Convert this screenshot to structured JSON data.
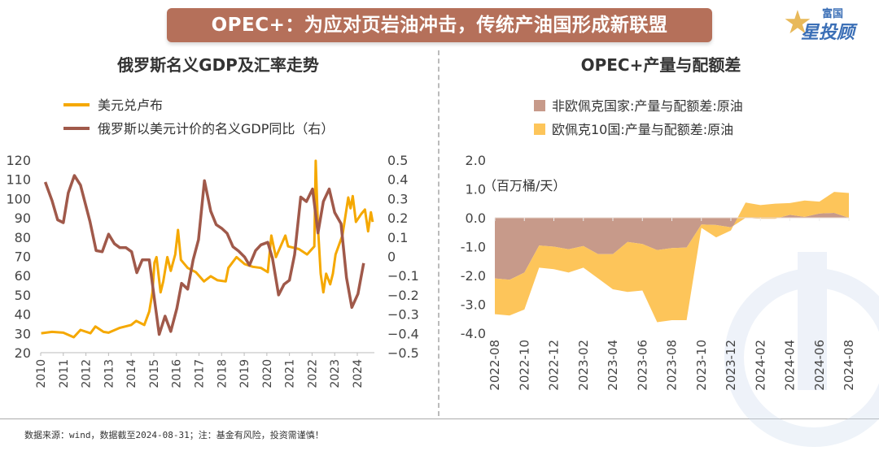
{
  "header": {
    "title": "OPEC+：为应对页岩油冲击，传统产油国形成新联盟",
    "logo_text": "富国星投顾"
  },
  "footer": {
    "source": "数据来源：wind，数据截至2024-08-31；注：基金有风险，投资需谨慎！"
  },
  "colors": {
    "banner": "#b5705a",
    "gold": "#f5a800",
    "brown": "#a0594a",
    "mauve": "#c79a8a",
    "yellow_area": "#fdc55a"
  },
  "chart_data": [
    {
      "type": "line",
      "title": "俄罗斯名义GDP及汇率走势",
      "legend_position": "top-left",
      "grid": false,
      "x_ticks": [
        "2010",
        "2011",
        "2012",
        "2013",
        "2014",
        "2015",
        "2016",
        "2017",
        "2018",
        "2019",
        "2020",
        "2021",
        "2022",
        "2023",
        "2024"
      ],
      "y_left": {
        "range": [
          20,
          120
        ],
        "ticks": [
          "20",
          "30",
          "40",
          "50",
          "60",
          "70",
          "80",
          "90",
          "100",
          "110",
          "120"
        ]
      },
      "y_right": {
        "range": [
          -0.5,
          0.5
        ],
        "ticks": [
          "−0.5",
          "−0.4",
          "−0.3",
          "−0.2",
          "−0.1",
          "0",
          "0.1",
          "0.2",
          "0.3",
          "0.4",
          "0.5"
        ]
      },
      "series": [
        {
          "name": "美元兑卢布",
          "axis": "left",
          "color": "#f5a800",
          "x": [
            2010.02,
            2010.5,
            2011.0,
            2011.46,
            2011.76,
            2012.2,
            2012.42,
            2012.78,
            2013.0,
            2013.5,
            2014.0,
            2014.22,
            2014.58,
            2014.8,
            2014.94,
            2015.03,
            2015.12,
            2015.3,
            2015.42,
            2015.6,
            2015.75,
            2015.95,
            2016.07,
            2016.2,
            2016.5,
            2016.86,
            2017.22,
            2017.52,
            2017.82,
            2018.18,
            2018.3,
            2018.66,
            2019.02,
            2019.38,
            2019.74,
            2020.04,
            2020.2,
            2020.4,
            2020.82,
            2020.94,
            2021.42,
            2021.78,
            2022.1,
            2022.16,
            2022.26,
            2022.38,
            2022.5,
            2022.62,
            2022.8,
            2022.92,
            2023.04,
            2023.34,
            2023.6,
            2023.7,
            2023.8,
            2023.94,
            2024.18,
            2024.34,
            2024.48,
            2024.6,
            2024.68
          ],
          "y": [
            30.1,
            30.8,
            30.4,
            28,
            31.8,
            30.1,
            33.6,
            30.8,
            30.4,
            32.9,
            34.4,
            36.5,
            34.4,
            41.4,
            51.3,
            66.8,
            69.6,
            51.3,
            57,
            69.6,
            62.5,
            71,
            83.7,
            68.2,
            64,
            61.8,
            57,
            59.7,
            57.6,
            57,
            64,
            69.6,
            66,
            64.6,
            64,
            61.8,
            80.8,
            69.6,
            80.8,
            75.2,
            73.8,
            71,
            75.2,
            119.6,
            85,
            61,
            51.3,
            61,
            55.5,
            61,
            71,
            80.8,
            100.6,
            95,
            101.3,
            87.9,
            92.1,
            94.3,
            83,
            92.9,
            87.9
          ]
        },
        {
          "name": "俄罗斯以美元计价的名义GDP同比（右）",
          "axis": "right",
          "color": "#a0594a",
          "x": [
            2010.2,
            2010.5,
            2010.75,
            2011.0,
            2011.22,
            2011.49,
            2011.76,
            2012.18,
            2012.45,
            2012.72,
            2013.0,
            2013.26,
            2013.5,
            2013.77,
            2014.02,
            2014.25,
            2014.49,
            2014.8,
            2015.02,
            2015.24,
            2015.5,
            2015.75,
            2016.02,
            2016.23,
            2016.5,
            2016.74,
            2016.98,
            2017.24,
            2017.52,
            2017.76,
            2018.0,
            2018.24,
            2018.5,
            2018.75,
            2019.02,
            2019.23,
            2019.5,
            2019.74,
            2020.04,
            2020.25,
            2020.52,
            2020.76,
            2021.0,
            2021.23,
            2021.5,
            2021.75,
            2022.02,
            2022.26,
            2022.5,
            2022.76,
            2023.0,
            2023.28,
            2023.52,
            2023.76,
            2024.03,
            2024.28
          ],
          "y": [
            0.386,
            0.29,
            0.19,
            0.175,
            0.33,
            0.42,
            0.37,
            0.18,
            0.03,
            0.024,
            0.115,
            0.066,
            0.045,
            0.045,
            0.024,
            -0.085,
            -0.018,
            -0.018,
            -0.215,
            -0.405,
            -0.31,
            -0.39,
            -0.27,
            -0.14,
            -0.17,
            -0.018,
            0.087,
            0.393,
            0.235,
            0.165,
            0.146,
            0.12,
            0.05,
            0.028,
            -0.004,
            -0.046,
            0.03,
            0.06,
            0.073,
            -0.01,
            -0.2,
            -0.145,
            -0.124,
            0.01,
            0.308,
            0.285,
            0.35,
            0.122,
            0.285,
            0.35,
            0.228,
            0.17,
            -0.11,
            -0.265,
            -0.195,
            -0.035
          ]
        }
      ]
    },
    {
      "type": "area",
      "stacked": true,
      "title": "OPEC+产量与配额差",
      "unit_label": "（百万桶/天）",
      "legend_position": "top",
      "grid": false,
      "y_range": [
        -4.0,
        2.0
      ],
      "y_ticks": [
        "-4.0",
        "-3.0",
        "-2.0",
        "-1.0",
        "0.0",
        "1.0",
        "2.0"
      ],
      "x_ticks": [
        "2022-08",
        "2022-10",
        "2022-12",
        "2023-02",
        "2023-04",
        "2023-06",
        "2023-08",
        "2023-10",
        "2023-12",
        "2024-02",
        "2024-04",
        "2024-06",
        "2024-08"
      ],
      "months": [
        "2022-08",
        "2022-09",
        "2022-10",
        "2022-11",
        "2022-12",
        "2023-01",
        "2023-02",
        "2023-03",
        "2023-04",
        "2023-05",
        "2023-06",
        "2023-07",
        "2023-08",
        "2023-09",
        "2023-10",
        "2023-11",
        "2023-12",
        "2024-01",
        "2024-02",
        "2024-03",
        "2024-04",
        "2024-05",
        "2024-06",
        "2024-07",
        "2024-08"
      ],
      "series": [
        {
          "name": "非欧佩克国家:产量与配额差:原油",
          "color": "#c79a8a",
          "values": [
            -2.1,
            -2.15,
            -1.9,
            -0.96,
            -1.0,
            -1.09,
            -0.98,
            -1.26,
            -1.26,
            -0.84,
            -0.91,
            -1.12,
            -1.05,
            -1.03,
            -0.23,
            -0.25,
            -0.33,
            0.0,
            -0.03,
            -0.03,
            0.1,
            0.03,
            0.15,
            0.17,
            0.0
          ]
        },
        {
          "name": "欧佩克10国:产量与配额差:原油",
          "color": "#fdc55a",
          "values": [
            -1.24,
            -1.24,
            -1.28,
            -0.77,
            -0.78,
            -0.81,
            -0.75,
            -0.84,
            -1.22,
            -1.73,
            -1.61,
            -2.5,
            -2.5,
            -2.52,
            -0.12,
            -0.43,
            -0.11,
            0.53,
            0.47,
            0.52,
            0.41,
            0.57,
            0.41,
            0.73,
            0.86
          ]
        }
      ]
    }
  ]
}
